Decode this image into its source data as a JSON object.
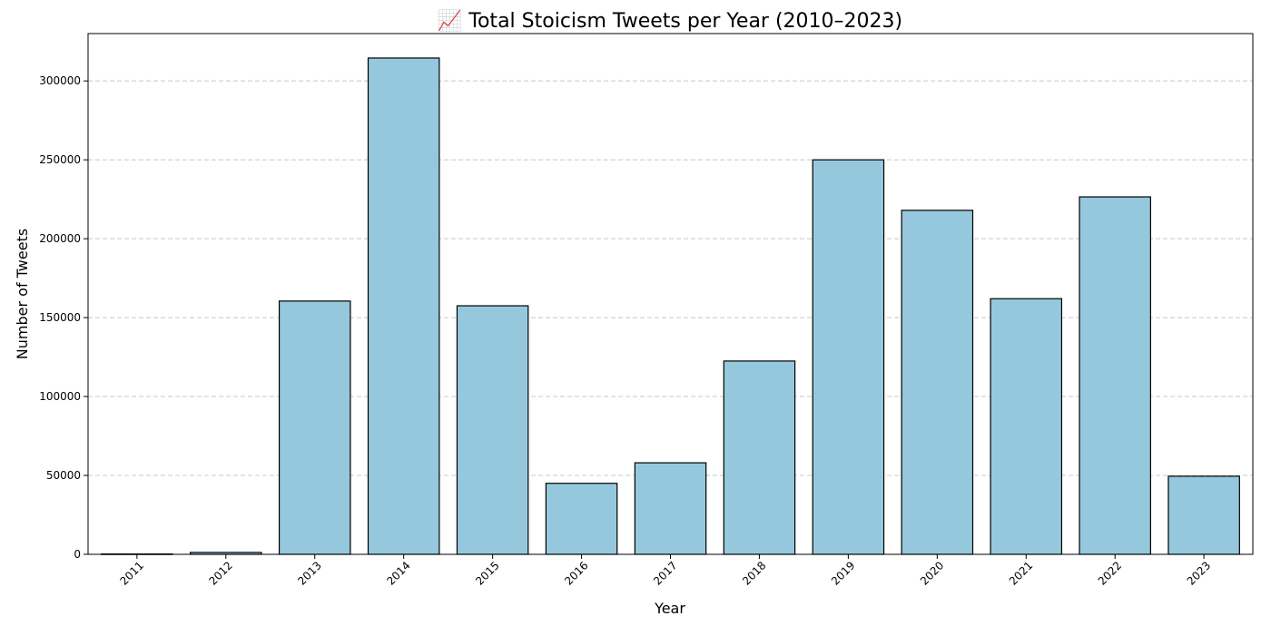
{
  "chart_data": {
    "type": "bar",
    "title": "📈 Total Stoicism Tweets per Year (2010–2023)",
    "xlabel": "Year",
    "ylabel": "Number of Tweets",
    "categories": [
      "2011",
      "2012",
      "2013",
      "2014",
      "2015",
      "2016",
      "2017",
      "2018",
      "2019",
      "2020",
      "2021",
      "2022",
      "2023"
    ],
    "values": [
      200,
      1200,
      160500,
      314500,
      157500,
      45000,
      58000,
      122500,
      250000,
      218000,
      162000,
      226500,
      49500
    ],
    "ylim": [
      0,
      330000
    ],
    "yticks": [
      0,
      50000,
      100000,
      150000,
      200000,
      250000,
      300000
    ],
    "ytick_labels": [
      "0",
      "50000",
      "100000",
      "150000",
      "200000",
      "250000",
      "300000"
    ],
    "grid": "y-dashed",
    "colors": {
      "bar_fill": "#95c8dc",
      "bar_edge": "#000000",
      "grid": "#c8c8c8"
    }
  }
}
